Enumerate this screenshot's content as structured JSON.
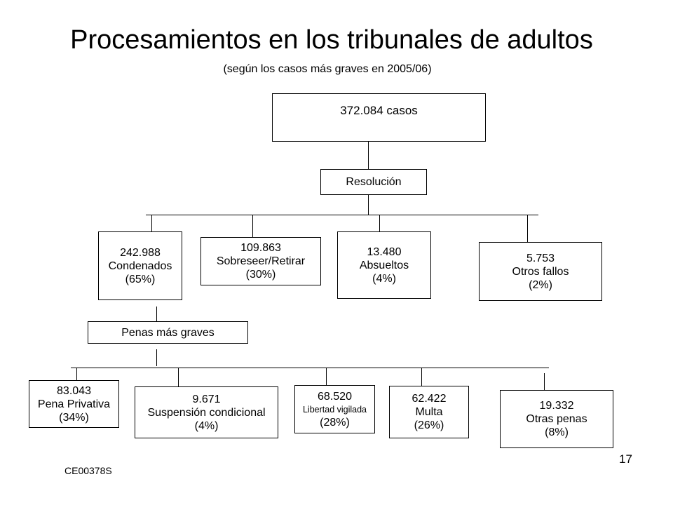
{
  "slide": {
    "title": "Procesamientos en los tribunales de adultos",
    "subtitle": "(según los casos más graves en 2005/06)",
    "footer_code": "CE00378S",
    "page_number": "17"
  },
  "root": {
    "label": "372.084 casos"
  },
  "decision": {
    "label": "Resolución"
  },
  "outcomes": [
    {
      "count": "242.988",
      "label": "Condenados",
      "pct": "(65%)"
    },
    {
      "count": "109.863",
      "label": "Sobreseer/Retirar",
      "pct": "(30%)"
    },
    {
      "count": "13.480",
      "label": "Absueltos",
      "pct": "(4%)"
    },
    {
      "count": "5.753",
      "label": "Otros fallos",
      "pct": "(2%)"
    }
  ],
  "sentences_header": {
    "label": "Penas más graves"
  },
  "sentences": [
    {
      "count": "83.043",
      "label": "Pena Privativa",
      "pct": "(34%)"
    },
    {
      "count": "9.671",
      "label": "Suspensión condicional",
      "pct": "(4%)"
    },
    {
      "count": "68.520",
      "label": "Libertad vigilada",
      "pct": "(28%)"
    },
    {
      "count": "62.422",
      "label": "Multa",
      "pct": "(26%)"
    },
    {
      "count": "19.332",
      "label": "Otras penas",
      "pct": "(8%)"
    }
  ]
}
